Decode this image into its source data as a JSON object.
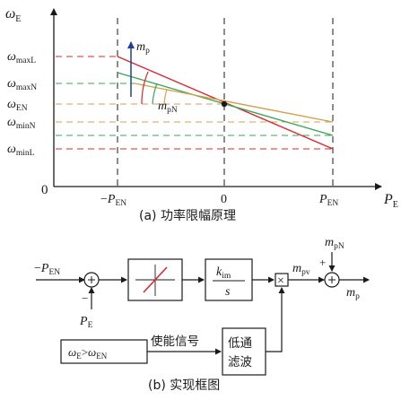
{
  "colors": {
    "axis": "#1a1a1a",
    "red": "#d9272e",
    "green": "#3aa655",
    "tan": "#d4a04c",
    "blue": "#1e3f9c",
    "box_red": "#d9272e"
  },
  "panel_a": {
    "y_axis_label": "ω",
    "y_axis_sub": "E",
    "x_axis_label": "P",
    "x_axis_sub": "E",
    "origin_label": "0",
    "x_ticks": [
      {
        "sign": "−",
        "main": "P",
        "sub": "EN"
      },
      {
        "sign": "",
        "main": "0",
        "sub": ""
      },
      {
        "sign": "",
        "main": "P",
        "sub": "EN"
      }
    ],
    "y_labels": [
      {
        "main": "ω",
        "sub": "maxL"
      },
      {
        "main": "ω",
        "sub": "maxN"
      },
      {
        "main": "ω",
        "sub": "EN"
      },
      {
        "main": "ω",
        "sub": "minN"
      },
      {
        "main": "ω",
        "sub": "minL"
      }
    ],
    "mp_label": {
      "main": "m",
      "sub": "p"
    },
    "mpn_label": {
      "main": "m",
      "sub": "pN"
    },
    "caption": "(a) 功率限幅原理"
  },
  "panel_b": {
    "input_label": {
      "sign": "−",
      "main": "P",
      "sub": "EN"
    },
    "feedback_label": {
      "main": "P",
      "sub": "E"
    },
    "feedback_sign": "−",
    "ki_num": {
      "main": "k",
      "sub": "im"
    },
    "ki_den": "s",
    "mpv_label": {
      "main": "m",
      "sub": "pv"
    },
    "mpn_label": {
      "main": "m",
      "sub": "pN"
    },
    "plus_sign": "+",
    "output_label": {
      "main": "m",
      "sub": "p"
    },
    "mult_symbol": "×",
    "condition": {
      "a": "ω",
      "a_sub": "E",
      "op": ">",
      "b": "ω",
      "b_sub": "EN"
    },
    "enable_label": "使能信号",
    "filter_label_1": "低通",
    "filter_label_2": "滤波",
    "caption": "(b) 实现框图"
  }
}
